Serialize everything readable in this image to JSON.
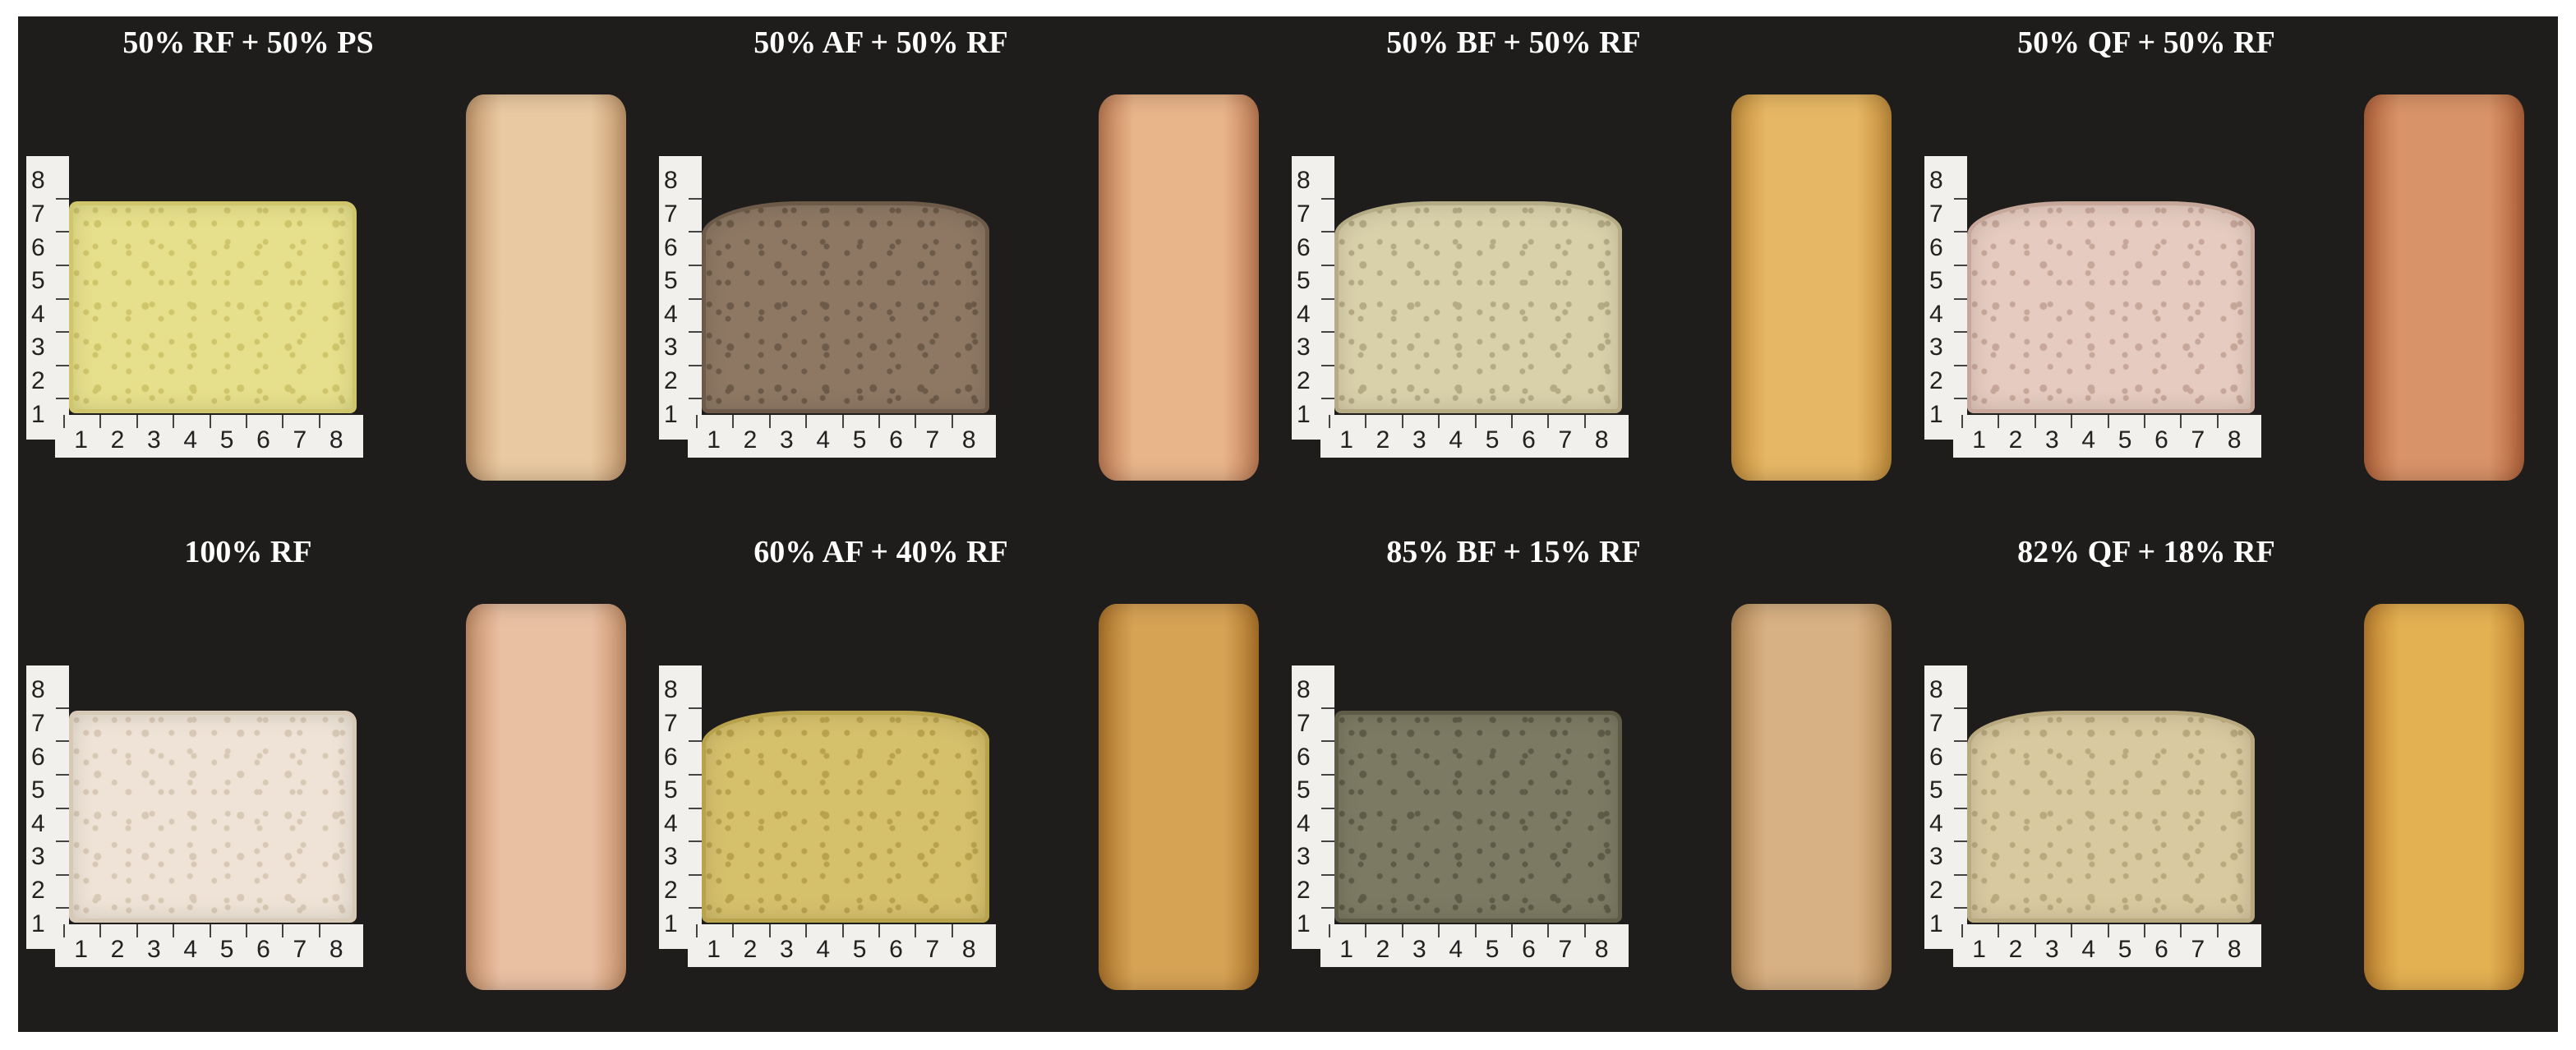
{
  "figure": {
    "samples": [
      {
        "label": "50% RF + 50% PS",
        "crumb": "#e6e08c",
        "crumb_dark": "#cfc66c",
        "crust": "#e9c9a1",
        "crust_dark": "#c69a6e",
        "slice_shape": "flat"
      },
      {
        "label": "50% AF + 50% RF",
        "crumb": "#8e7864",
        "crumb_dark": "#6d5a48",
        "crust": "#e8b48a",
        "crust_dark": "#c17d55",
        "slice_shape": "dome"
      },
      {
        "label": "50% BF + 50% RF",
        "crumb": "#d9d1aa",
        "crumb_dark": "#b5ab84",
        "crust": "#e6b765",
        "crust_dark": "#c48f3c",
        "slice_shape": "dome"
      },
      {
        "label": "50% QF + 50% RF",
        "crumb": "#e5cbc0",
        "crumb_dark": "#c7a79a",
        "crust": "#d89368",
        "crust_dark": "#b5653c",
        "slice_shape": "dome"
      },
      {
        "label": "100% RF",
        "crumb": "#eee3d6",
        "crumb_dark": "#d8c9b6",
        "crust": "#eac0a3",
        "crust_dark": "#cb946c",
        "slice_shape": "flat"
      },
      {
        "label": "60% AF + 40% RF",
        "crumb": "#d5c06c",
        "crumb_dark": "#b8a24c",
        "crust": "#d6a355",
        "crust_dark": "#b0762c",
        "slice_shape": "dome"
      },
      {
        "label": "85% BF + 15% RF",
        "crumb": "#7c7a62",
        "crumb_dark": "#5e5c47",
        "crust": "#d7b083",
        "crust_dark": "#b58a58",
        "slice_shape": "flat"
      },
      {
        "label": "82% QF + 18% RF",
        "crumb": "#d8c9a0",
        "crumb_dark": "#b9a97e",
        "crust": "#e3b052",
        "crust_dark": "#bf8330",
        "slice_shape": "dome"
      }
    ],
    "ruler_ticks": [
      "1",
      "2",
      "3",
      "4",
      "5",
      "6",
      "7",
      "8"
    ],
    "background": "#1e1d1b"
  }
}
